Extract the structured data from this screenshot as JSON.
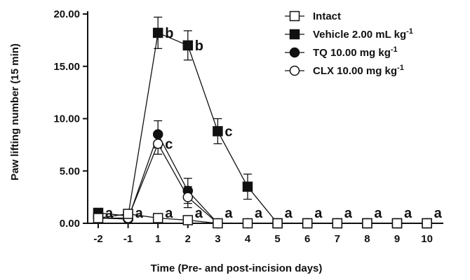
{
  "chart_data": {
    "type": "line",
    "xlabel": "Time (Pre- and post-incision days)",
    "ylabel": "Paw lifting number (15 min)",
    "x": [
      -2,
      -1,
      1,
      2,
      3,
      4,
      5,
      6,
      7,
      8,
      9,
      10
    ],
    "x_tick_labels": [
      "-2",
      "-1",
      "1",
      "2",
      "3",
      "4",
      "5",
      "6",
      "7",
      "8",
      "9",
      "10"
    ],
    "ylim": [
      0,
      20
    ],
    "y_ticks": [
      0,
      5,
      10,
      15,
      20
    ],
    "y_tick_labels": [
      "0.00",
      "5.00",
      "10.00",
      "15.00",
      "20.00"
    ],
    "grid": false,
    "legend_position": "top-right",
    "series": [
      {
        "name": "Intact",
        "marker": "square-open",
        "values": [
          0.5,
          0.9,
          0.5,
          0.3,
          0.0,
          0.0,
          0.0,
          0.0,
          0.0,
          0.0,
          0.0,
          0.0
        ],
        "errors": [
          0.2,
          0.3,
          0.2,
          0.2,
          0,
          0,
          0,
          0,
          0,
          0,
          0,
          0
        ]
      },
      {
        "name": "Vehicle 2.00 mL kg",
        "name_sup": "-1",
        "marker": "square-filled",
        "values": [
          1.0,
          0.7,
          18.2,
          17.0,
          8.8,
          3.5,
          0.0,
          0.0,
          0.0,
          0.0,
          0.0,
          0.0
        ],
        "errors": [
          0.2,
          0.2,
          1.5,
          1.4,
          1.2,
          1.2,
          0,
          0,
          0,
          0,
          0,
          0
        ]
      },
      {
        "name": "TQ 10.00 mg kg",
        "name_sup": "-1",
        "marker": "circle-filled",
        "values": [
          0.5,
          0.4,
          8.5,
          3.1,
          0.0,
          0.0,
          0.0,
          0.0,
          0.0,
          0.0,
          0.0,
          0.0
        ],
        "errors": [
          0.2,
          0.2,
          1.3,
          1.2,
          0,
          0,
          0,
          0,
          0,
          0,
          0,
          0
        ]
      },
      {
        "name": "CLX 10.00 mg kg",
        "name_sup": "-1",
        "marker": "circle-open",
        "values": [
          0.5,
          0.5,
          7.6,
          2.5,
          0.0,
          0.0,
          0.0,
          0.0,
          0.0,
          0.0,
          0.0,
          0.0
        ],
        "errors": [
          0.2,
          0.2,
          1.0,
          1.0,
          0,
          0,
          0,
          0,
          0,
          0,
          0,
          0
        ]
      }
    ],
    "annotations": [
      {
        "text": "a",
        "x": -2,
        "y": 1.0
      },
      {
        "text": "a",
        "x": -1,
        "y": 1.0
      },
      {
        "text": "b",
        "x": 1,
        "y": 18.2
      },
      {
        "text": "c",
        "x": 1,
        "y": 7.6
      },
      {
        "text": "a",
        "x": 1,
        "y": 1.0
      },
      {
        "text": "b",
        "x": 2,
        "y": 17.0
      },
      {
        "text": "a",
        "x": 2,
        "y": 1.0
      },
      {
        "text": "c",
        "x": 3,
        "y": 8.8
      },
      {
        "text": "a",
        "x": 3,
        "y": 1.0
      },
      {
        "text": "a",
        "x": 4,
        "y": 1.0
      },
      {
        "text": "a",
        "x": 5,
        "y": 1.0
      },
      {
        "text": "a",
        "x": 6,
        "y": 1.0
      },
      {
        "text": "a",
        "x": 7,
        "y": 1.0
      },
      {
        "text": "a",
        "x": 8,
        "y": 1.0
      },
      {
        "text": "a",
        "x": 9,
        "y": 1.0
      },
      {
        "text": "a",
        "x": 10,
        "y": 1.0
      }
    ]
  }
}
